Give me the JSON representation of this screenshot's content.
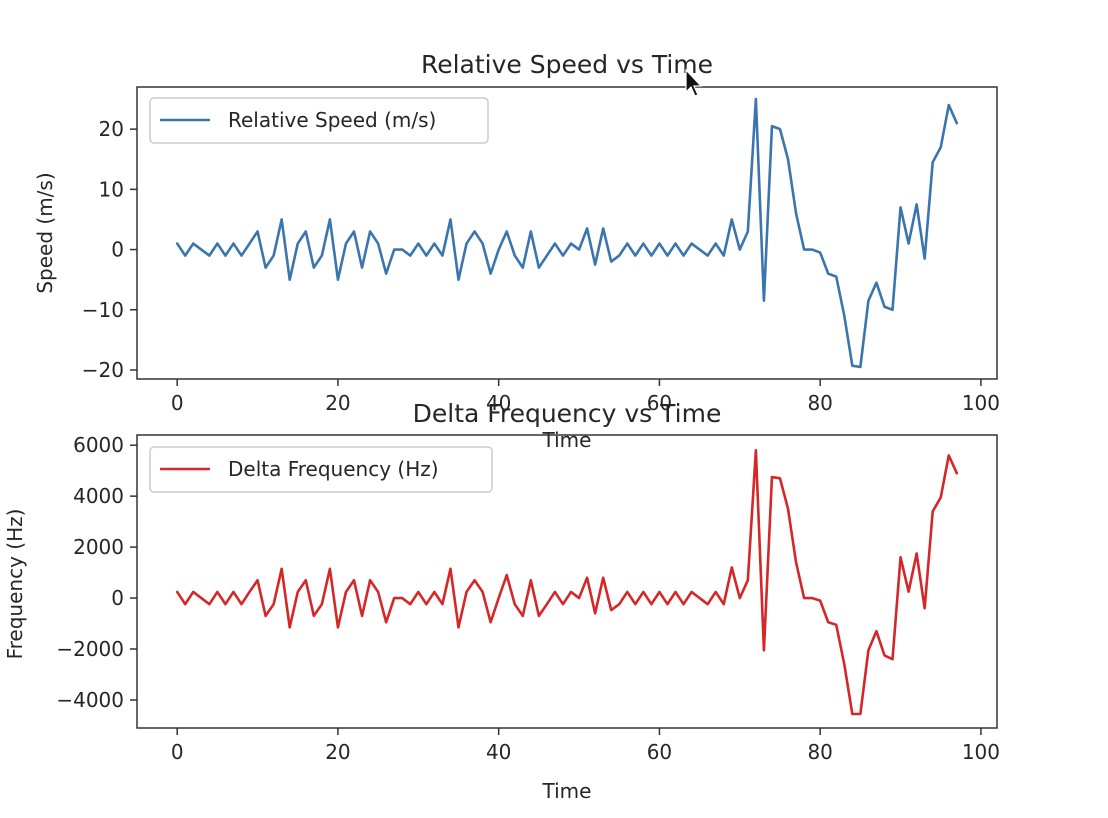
{
  "chart_data": [
    {
      "type": "line",
      "title": "Relative Speed vs Time",
      "xlabel": "Time",
      "ylabel": "Speed (m/s)",
      "xlim": [
        -5,
        102
      ],
      "ylim": [
        -21.5,
        27.0
      ],
      "xticks": [
        0,
        20,
        40,
        60,
        80,
        100
      ],
      "yticks": [
        -20,
        -10,
        0,
        10,
        20
      ],
      "xtick_labels": [
        "0",
        "20",
        "40",
        "60",
        "80",
        "100"
      ],
      "ytick_labels": [
        "−20",
        "−10",
        "0",
        "10",
        "20"
      ],
      "legend_position": "upper-left",
      "grid": false,
      "series": [
        {
          "name": "Relative Speed (m/s)",
          "color": "#3a75ad",
          "x": [
            0,
            1,
            2,
            3,
            4,
            5,
            6,
            7,
            8,
            9,
            10,
            11,
            12,
            13,
            14,
            15,
            16,
            17,
            18,
            19,
            20,
            21,
            22,
            23,
            24,
            25,
            26,
            27,
            28,
            29,
            30,
            31,
            32,
            33,
            34,
            35,
            36,
            37,
            38,
            39,
            40,
            41,
            42,
            43,
            44,
            45,
            46,
            47,
            48,
            49,
            50,
            51,
            52,
            53,
            54,
            55,
            56,
            57,
            58,
            59,
            60,
            61,
            62,
            63,
            64,
            65,
            66,
            67,
            68,
            69,
            70,
            71,
            72,
            73,
            74,
            75,
            76,
            77,
            78,
            79,
            80,
            81,
            82,
            83,
            84,
            85,
            86,
            87,
            88,
            89,
            90,
            91,
            92,
            93,
            94,
            95,
            96,
            97
          ],
          "values": [
            1.0,
            -1.0,
            1.0,
            0.0,
            -1.0,
            1.0,
            -1.0,
            1.0,
            -1.0,
            1.0,
            3.0,
            -3.0,
            -1.0,
            5.0,
            -5.0,
            1.0,
            3.0,
            -3.0,
            -1.0,
            5.0,
            -5.0,
            1.0,
            3.0,
            -3.0,
            3.0,
            1.0,
            -4.0,
            0.0,
            0.0,
            -1.0,
            1.0,
            -1.0,
            1.0,
            -1.0,
            5.0,
            -5.0,
            1.0,
            3.0,
            1.0,
            -4.0,
            0.0,
            3.0,
            -1.0,
            -3.0,
            3.0,
            -3.0,
            -1.0,
            1.0,
            -1.0,
            1.0,
            0.0,
            3.5,
            -2.5,
            3.5,
            -2.0,
            -1.0,
            1.0,
            -1.0,
            1.0,
            -1.0,
            1.0,
            -1.0,
            1.0,
            -1.0,
            1.0,
            0.0,
            -1.0,
            1.0,
            -1.0,
            5.0,
            0.0,
            3.0,
            25.0,
            -8.5,
            20.5,
            20.0,
            15.0,
            6.0,
            0.0,
            0.0,
            -0.5,
            -4.0,
            -4.5,
            -11.0,
            -19.3,
            -19.5,
            -8.5,
            -5.5,
            -9.5,
            -10.0,
            7.0,
            1.0,
            7.5,
            -1.5,
            14.5,
            17.0,
            24.0,
            21.0
          ]
        }
      ]
    },
    {
      "type": "line",
      "title": "Delta Frequency vs Time",
      "xlabel": "Time",
      "ylabel": "Frequency (Hz)",
      "xlim": [
        -5,
        102
      ],
      "ylim": [
        -5100,
        6400
      ],
      "xticks": [
        0,
        20,
        40,
        60,
        80,
        100
      ],
      "yticks": [
        -4000,
        -2000,
        0,
        2000,
        4000,
        6000
      ],
      "xtick_labels": [
        "0",
        "20",
        "40",
        "60",
        "80",
        "100"
      ],
      "ytick_labels": [
        "−4000",
        "−2000",
        "0",
        "2000",
        "4000",
        "6000"
      ],
      "legend_position": "upper-left",
      "grid": false,
      "series": [
        {
          "name": "Delta Frequency (Hz)",
          "color": "#d62728",
          "x": [
            0,
            1,
            2,
            3,
            4,
            5,
            6,
            7,
            8,
            9,
            10,
            11,
            12,
            13,
            14,
            15,
            16,
            17,
            18,
            19,
            20,
            21,
            22,
            23,
            24,
            25,
            26,
            27,
            28,
            29,
            30,
            31,
            32,
            33,
            34,
            35,
            36,
            37,
            38,
            39,
            40,
            41,
            42,
            43,
            44,
            45,
            46,
            47,
            48,
            49,
            50,
            51,
            52,
            53,
            54,
            55,
            56,
            57,
            58,
            59,
            60,
            61,
            62,
            63,
            64,
            65,
            66,
            67,
            68,
            69,
            70,
            71,
            72,
            73,
            74,
            75,
            76,
            77,
            78,
            79,
            80,
            81,
            82,
            83,
            84,
            85,
            86,
            87,
            88,
            89,
            90,
            91,
            92,
            93,
            94,
            95,
            96,
            97
          ],
          "values": [
            240,
            -240,
            240,
            0,
            -240,
            240,
            -240,
            240,
            -240,
            240,
            700,
            -700,
            -240,
            1150,
            -1150,
            240,
            700,
            -700,
            -240,
            1150,
            -1150,
            240,
            700,
            -700,
            700,
            240,
            -950,
            0,
            0,
            -240,
            240,
            -240,
            240,
            -240,
            1150,
            -1150,
            240,
            700,
            240,
            -950,
            0,
            900,
            -240,
            -700,
            700,
            -700,
            -240,
            240,
            -240,
            240,
            0,
            800,
            -600,
            800,
            -470,
            -240,
            240,
            -240,
            240,
            -240,
            240,
            -240,
            240,
            -240,
            240,
            0,
            -240,
            240,
            -240,
            1200,
            0,
            700,
            5800,
            -2050,
            4750,
            4700,
            3500,
            1400,
            0,
            0,
            -100,
            -950,
            -1050,
            -2600,
            -4550,
            -4550,
            -2050,
            -1300,
            -2250,
            -2400,
            1600,
            250,
            1750,
            -400,
            3400,
            3950,
            5600,
            4900
          ]
        }
      ]
    }
  ]
}
